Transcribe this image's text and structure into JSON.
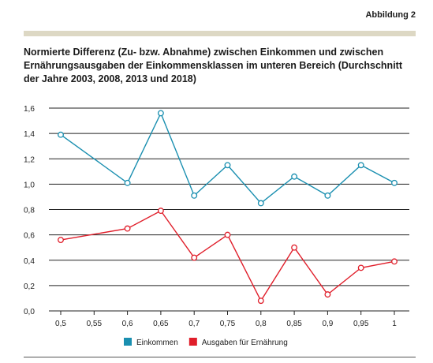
{
  "figure_label": "Abbildung 2",
  "chart_data": {
    "type": "line",
    "title": "Normierte Differenz (Zu- bzw. Abnahme) zwischen Einkommen und zwischen Ernährungsausgaben der Einkommensklassen im unteren Bereich (Durchschnitt der Jahre 2003, 2008, 2013 und 2018)",
    "xlabel": "",
    "ylabel": "",
    "x_ticks": [
      "0,5",
      "0,55",
      "0,6",
      "0,65",
      "0,7",
      "0,75",
      "0,8",
      "0,85",
      "0,9",
      "0,95",
      "1"
    ],
    "x_tick_values": [
      0.5,
      0.55,
      0.6,
      0.65,
      0.7,
      0.75,
      0.8,
      0.85,
      0.9,
      0.95,
      1.0
    ],
    "y_ticks": [
      "0,0",
      "0,2",
      "0,4",
      "0,6",
      "0,8",
      "1,0",
      "1,2",
      "1,4",
      "1,6"
    ],
    "y_tick_values": [
      0,
      0.2,
      0.4,
      0.6,
      0.8,
      1.0,
      1.2,
      1.4,
      1.6
    ],
    "ylim": [
      0,
      1.6
    ],
    "grid": "horizontal",
    "legend_position": "bottom",
    "series": [
      {
        "name": "Einkommen",
        "color": "#1a8fb0",
        "points": [
          {
            "x": 0.5,
            "y": 1.39
          },
          {
            "x": 0.6,
            "y": 1.01
          },
          {
            "x": 0.65,
            "y": 1.56
          },
          {
            "x": 0.7,
            "y": 0.91
          },
          {
            "x": 0.75,
            "y": 1.15
          },
          {
            "x": 0.8,
            "y": 0.85
          },
          {
            "x": 0.85,
            "y": 1.06
          },
          {
            "x": 0.9,
            "y": 0.91
          },
          {
            "x": 0.95,
            "y": 1.15
          },
          {
            "x": 1.0,
            "y": 1.01
          }
        ]
      },
      {
        "name": "Ausgaben für Ernährung",
        "color": "#e01e2a",
        "points": [
          {
            "x": 0.5,
            "y": 0.56
          },
          {
            "x": 0.6,
            "y": 0.65
          },
          {
            "x": 0.65,
            "y": 0.79
          },
          {
            "x": 0.7,
            "y": 0.42
          },
          {
            "x": 0.75,
            "y": 0.6
          },
          {
            "x": 0.8,
            "y": 0.08
          },
          {
            "x": 0.85,
            "y": 0.5
          },
          {
            "x": 0.9,
            "y": 0.13
          },
          {
            "x": 0.95,
            "y": 0.34
          },
          {
            "x": 1.0,
            "y": 0.39
          }
        ]
      }
    ]
  }
}
